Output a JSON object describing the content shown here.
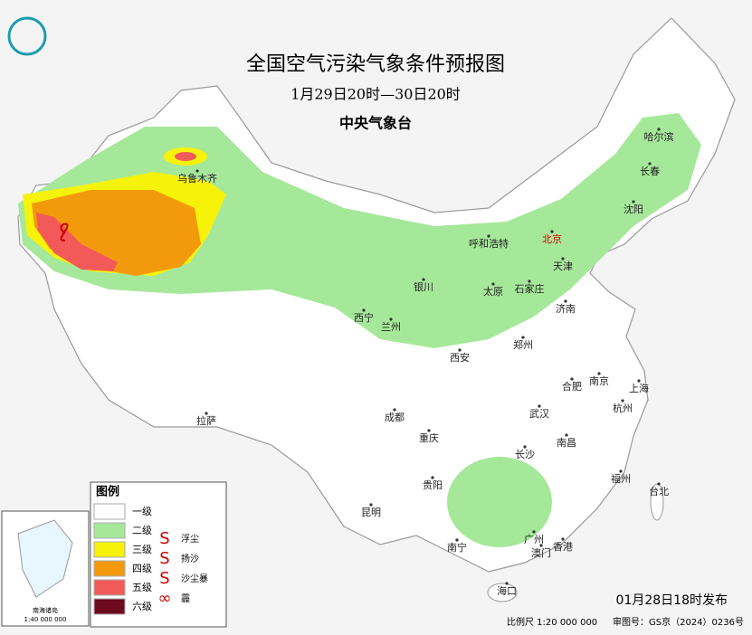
{
  "header": {
    "title": "全国空气污染气象条件预报图",
    "period": "1月29日20时—30日20时",
    "issuer": "中央气象台"
  },
  "cities": [
    "乌鲁木齐",
    "呼和浩特",
    "北京",
    "天津",
    "沈阳",
    "长春",
    "哈尔滨",
    "银川",
    "太原",
    "石家庄",
    "济南",
    "西宁",
    "兰州",
    "郑州",
    "西安",
    "合肥",
    "南京",
    "上海",
    "杭州",
    "武汉",
    "成都",
    "拉萨",
    "重庆",
    "南昌",
    "长沙",
    "福州",
    "台北",
    "贵阳",
    "昆明",
    "南宁",
    "广州",
    "澳门",
    "香港",
    "海口"
  ],
  "legend": {
    "title": "图例",
    "levels": [
      {
        "label": "一级",
        "color": "#ffffff"
      },
      {
        "label": "二级",
        "color": "#a6e89a"
      },
      {
        "label": "三级",
        "color": "#f7f20a"
      },
      {
        "label": "四级",
        "color": "#f39a0c"
      },
      {
        "label": "五级",
        "color": "#f25a5a"
      },
      {
        "label": "六级",
        "color": "#6e0a1e"
      }
    ],
    "symbols": [
      "浮尘",
      "扬沙",
      "沙尘暴",
      "霾"
    ]
  },
  "inset": {
    "label": "南海诸岛",
    "scale": "1:40 000 000"
  },
  "footer": {
    "issued": "01月28日18时发布",
    "scale": "比例尺 1:20 000 000",
    "review": "审图号：GS京（2024）0236号"
  }
}
